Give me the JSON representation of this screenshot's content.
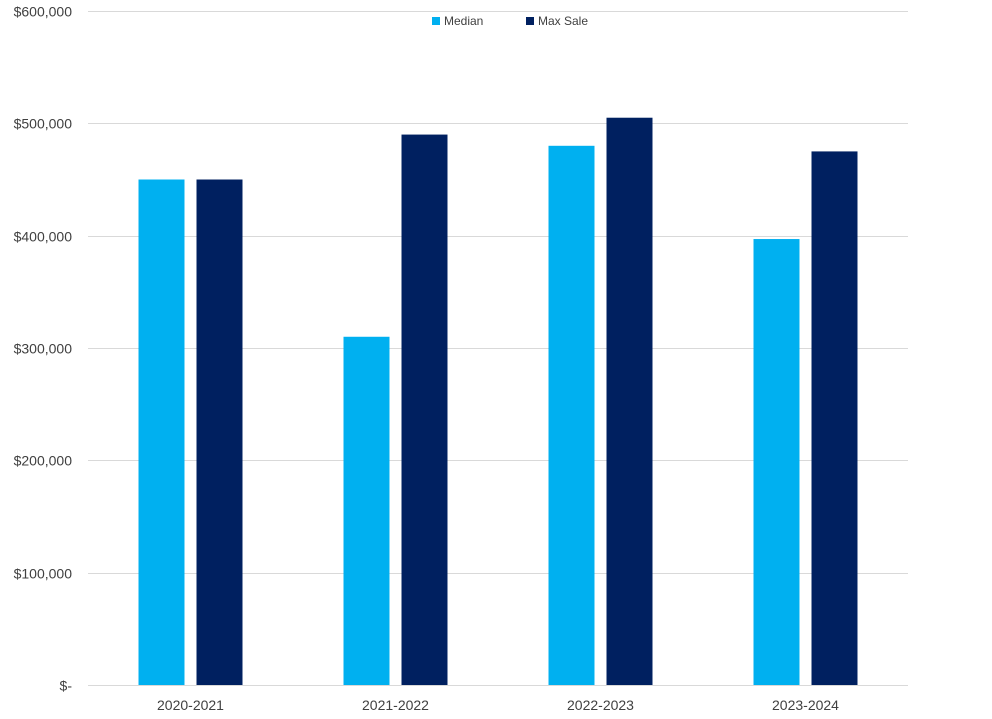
{
  "chart_data": {
    "type": "bar",
    "title": "",
    "xlabel": "",
    "ylabel": "",
    "categories": [
      "2020-2021",
      "2021-2022",
      "2022-2023",
      "2023-2024"
    ],
    "series": [
      {
        "name": "Median",
        "values": [
          450000,
          310000,
          480000,
          397000
        ]
      },
      {
        "name": "Max Sale",
        "values": [
          450000,
          490000,
          505000,
          475000
        ]
      }
    ],
    "ylim": [
      0,
      600000
    ],
    "yticks": [
      0,
      100000,
      200000,
      300000,
      400000,
      500000,
      600000
    ],
    "ytick_labels": [
      "$-",
      "$100,000",
      "$200,000",
      "$300,000",
      "$400,000",
      "$500,000",
      "$600,000"
    ],
    "grid": true,
    "legend_position": "top-center",
    "colors": {
      "Median": "#00B0F0",
      "Max Sale": "#002060",
      "grid": "#D9D9D9",
      "text": "#404040"
    }
  }
}
